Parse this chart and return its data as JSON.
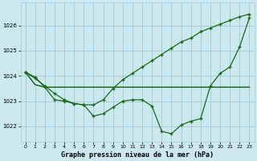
{
  "bg_color": "#cce8ef",
  "grid_color": "#aacdd6",
  "line_color": "#1a6b1a",
  "xlabel": "Graphe pression niveau de la mer (hPa)",
  "xlim": [
    -0.5,
    23.5
  ],
  "ylim": [
    1021.4,
    1026.9
  ],
  "yticks": [
    1022,
    1023,
    1024,
    1025,
    1026
  ],
  "xticks": [
    0,
    1,
    2,
    3,
    4,
    5,
    6,
    7,
    8,
    9,
    10,
    11,
    12,
    13,
    14,
    15,
    16,
    17,
    18,
    19,
    20,
    21,
    22,
    23
  ],
  "line1_x": [
    0,
    1,
    2,
    3,
    4,
    5,
    6,
    7,
    8,
    9,
    10,
    11,
    12,
    13,
    14,
    15,
    16,
    17,
    18,
    19,
    20,
    21,
    22,
    23
  ],
  "line1_y": [
    1024.15,
    1023.95,
    1023.55,
    1023.05,
    1023.0,
    1022.9,
    1022.85,
    1022.4,
    1022.5,
    1022.75,
    1023.0,
    1023.05,
    1023.05,
    1022.8,
    1021.8,
    1021.7,
    1022.05,
    1022.2,
    1022.3,
    1023.6,
    1024.1,
    1024.35,
    1025.15,
    1026.3
  ],
  "line2_x": [
    0,
    1,
    2,
    3,
    4,
    5,
    6,
    7,
    8,
    9,
    10,
    11,
    12,
    13,
    14,
    15,
    16,
    17,
    18,
    19,
    20,
    21,
    22,
    23
  ],
  "line2_y": [
    1024.15,
    1023.65,
    1023.55,
    1023.55,
    1023.55,
    1023.55,
    1023.55,
    1023.55,
    1023.55,
    1023.55,
    1023.55,
    1023.55,
    1023.55,
    1023.55,
    1023.55,
    1023.55,
    1023.55,
    1023.55,
    1023.55,
    1023.55,
    1023.55,
    1023.55,
    1023.55,
    1023.55
  ],
  "line3_x": [
    0,
    1,
    2,
    3,
    4,
    5,
    6,
    7,
    8,
    9,
    10,
    11,
    12,
    13,
    14,
    15,
    16,
    17,
    18,
    19,
    20,
    21,
    22,
    23
  ],
  "line3_y": [
    1024.15,
    1023.9,
    1023.6,
    1023.3,
    1023.05,
    1022.9,
    1022.85,
    1022.85,
    1023.05,
    1023.5,
    1023.85,
    1024.1,
    1024.35,
    1024.6,
    1024.85,
    1025.1,
    1025.35,
    1025.5,
    1025.75,
    1025.9,
    1026.05,
    1026.2,
    1026.35,
    1026.45
  ]
}
